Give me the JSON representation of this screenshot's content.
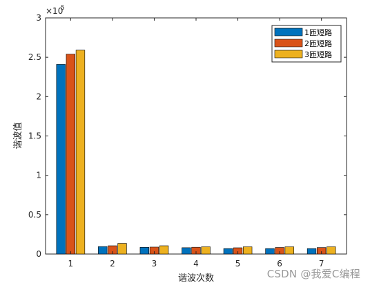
{
  "chart_data": {
    "type": "bar",
    "categories": [
      "1",
      "2",
      "3",
      "4",
      "5",
      "6",
      "7"
    ],
    "series": [
      {
        "name": "1匝短路",
        "color": "#0072BD",
        "values": [
          241000,
          9500,
          8500,
          8000,
          7000,
          7000,
          7000
        ]
      },
      {
        "name": "2匝短路",
        "color": "#D95319",
        "values": [
          254000,
          10500,
          8800,
          8600,
          7900,
          8300,
          8200
        ]
      },
      {
        "name": "3匝短路",
        "color": "#EDB120",
        "values": [
          259000,
          13500,
          10500,
          9200,
          9200,
          9200,
          9200
        ]
      }
    ],
    "xlabel": "谐波次数",
    "ylabel": "谐波值",
    "ylim": [
      0,
      300000
    ],
    "yticks": [
      "0",
      "0.5",
      "1",
      "1.5",
      "2",
      "2.5",
      "3"
    ],
    "y_multiplier": "×10",
    "y_exponent": "5",
    "legend_position": "top-right"
  },
  "watermark": "CSDN @我爱C编程"
}
